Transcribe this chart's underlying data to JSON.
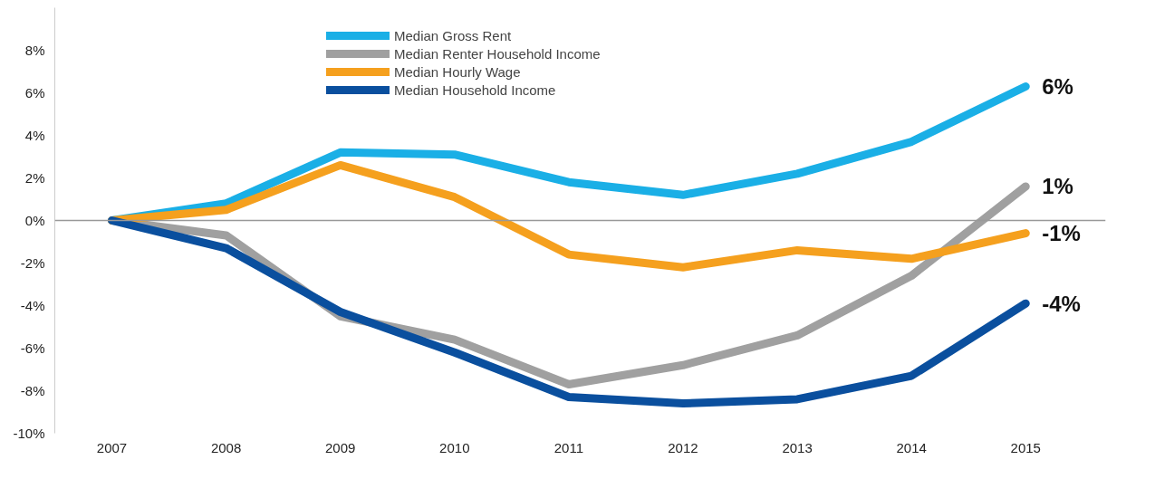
{
  "chart_data": {
    "type": "line",
    "categories": [
      "2007",
      "2008",
      "2009",
      "2010",
      "2011",
      "2012",
      "2013",
      "2014",
      "2015"
    ],
    "series": [
      {
        "name": "Median Gross Rent",
        "color": "#1aafe6",
        "values": [
          0,
          0.8,
          3.2,
          3.1,
          1.8,
          1.2,
          2.2,
          3.7,
          6.3
        ]
      },
      {
        "name": "Median Renter Household Income",
        "color": "#a0a0a0",
        "values": [
          0,
          -0.7,
          -4.5,
          -5.6,
          -7.7,
          -6.8,
          -5.4,
          -2.6,
          1.6
        ]
      },
      {
        "name": "Median Hourly Wage",
        "color": "#f5a01e",
        "values": [
          0,
          0.5,
          2.6,
          1.1,
          -1.6,
          -2.2,
          -1.4,
          -1.8,
          -0.6
        ]
      },
      {
        "name": "Median Household Income",
        "color": "#0a4f9e",
        "values": [
          0,
          -1.3,
          -4.3,
          -6.2,
          -8.3,
          -8.6,
          -8.4,
          -7.3,
          -3.9
        ]
      }
    ],
    "ylim": [
      -10,
      10
    ],
    "yticks": [
      {
        "value": -10,
        "label": "-10%"
      },
      {
        "value": -8,
        "label": "-8%"
      },
      {
        "value": -6,
        "label": "-6%"
      },
      {
        "value": -4,
        "label": "-4%"
      },
      {
        "value": -2,
        "label": "-2%"
      },
      {
        "value": 0,
        "label": "0%"
      },
      {
        "value": 2,
        "label": "2%"
      },
      {
        "value": 4,
        "label": "4%"
      },
      {
        "value": 6,
        "label": "6%"
      },
      {
        "value": 8,
        "label": "8%"
      }
    ],
    "ref_lines": [
      {
        "axis": "y",
        "value": 0,
        "color": "#999999"
      }
    ],
    "annotations": [
      {
        "text": "6%",
        "x": "2015",
        "y": 6.3
      },
      {
        "text": "1%",
        "x": "2015",
        "y": 1.6
      },
      {
        "text": "-1%",
        "x": "2015",
        "y": -0.6
      },
      {
        "text": "-4%",
        "x": "2015",
        "y": -3.9
      }
    ],
    "grid": false,
    "legend": "top",
    "marker": "none",
    "line_style": "solid"
  }
}
